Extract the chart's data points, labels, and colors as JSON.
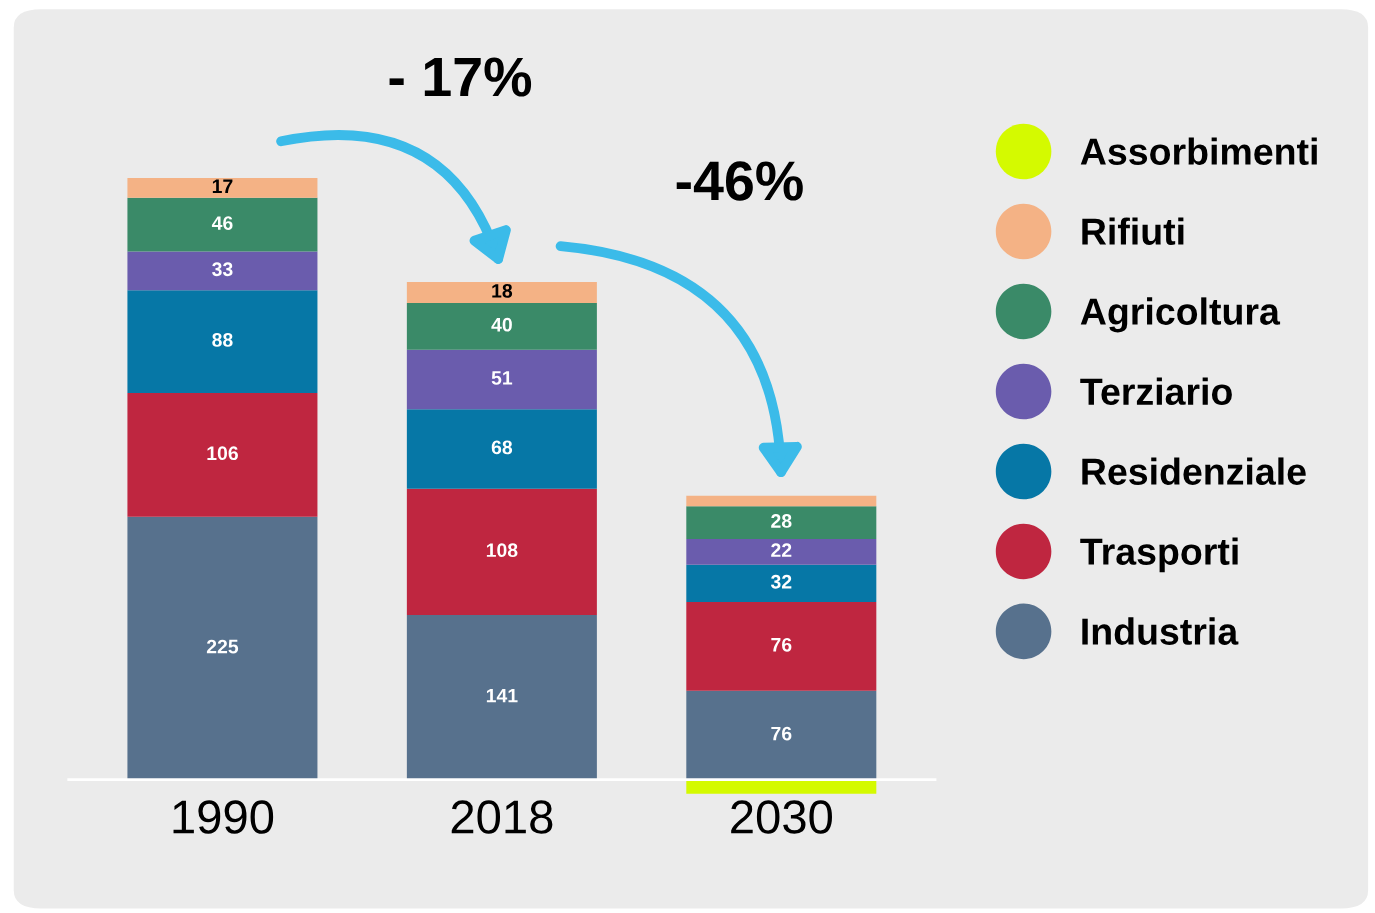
{
  "chart_data": {
    "type": "bar",
    "stacked": true,
    "categories": [
      "1990",
      "2018",
      "2030"
    ],
    "series": [
      {
        "name": "Industria",
        "color": "#57718d",
        "values": [
          225,
          141,
          76
        ],
        "value_labels": [
          "225",
          "141",
          "76"
        ]
      },
      {
        "name": "Trasporti",
        "color": "#bf2640",
        "values": [
          106,
          108,
          76
        ],
        "value_labels": [
          "106",
          "108",
          "76"
        ]
      },
      {
        "name": "Residenziale",
        "color": "#0677a6",
        "values": [
          88,
          68,
          32
        ],
        "value_labels": [
          "88",
          "68",
          "32"
        ]
      },
      {
        "name": "Terziario",
        "color": "#6a5cad",
        "values": [
          33,
          51,
          22
        ],
        "value_labels": [
          "33",
          "51",
          "22"
        ]
      },
      {
        "name": "Agricoltura",
        "color": "#3a8a68",
        "values": [
          46,
          40,
          28
        ],
        "value_labels": [
          "46",
          "40",
          "28"
        ]
      },
      {
        "name": "Rifiuti",
        "color": "#f4b285",
        "values": [
          17,
          18,
          9
        ],
        "value_labels": [
          "17",
          "18",
          null
        ]
      },
      {
        "name": "Assorbimenti",
        "color": "#d4fa00",
        "values": [
          null,
          null,
          -12
        ],
        "value_labels": [
          null,
          null,
          null
        ]
      }
    ],
    "annotations": [
      "- 17%",
      "-46%"
    ],
    "legend": "right",
    "grid": false
  }
}
